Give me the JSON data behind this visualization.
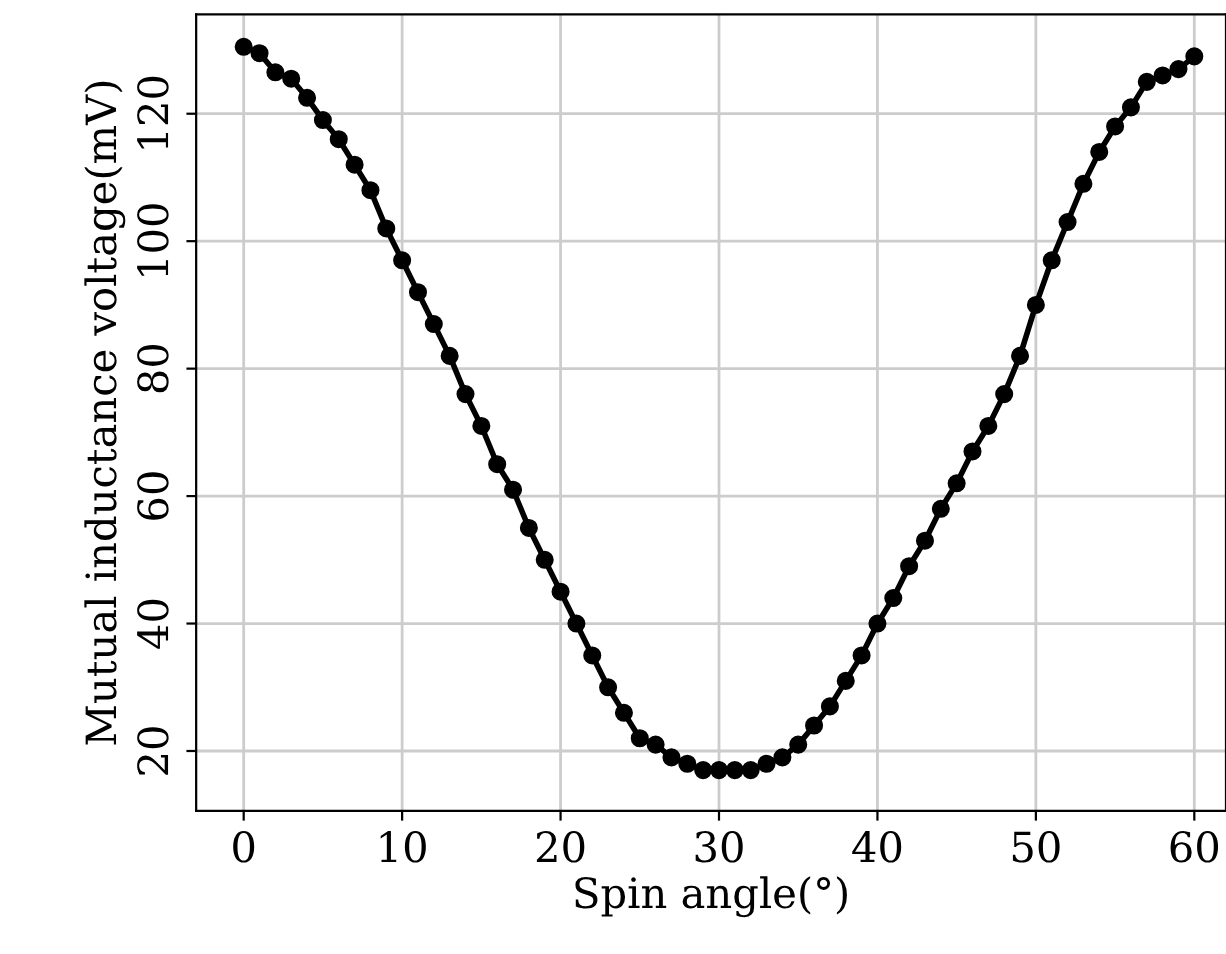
{
  "chart_data": {
    "type": "line",
    "xlabel": "Spin angle(°)",
    "ylabel": "Mutual inductance voltage(mV)",
    "x": [
      0,
      1,
      2,
      3,
      4,
      5,
      6,
      7,
      8,
      9,
      10,
      11,
      12,
      13,
      14,
      15,
      16,
      17,
      18,
      19,
      20,
      21,
      22,
      23,
      24,
      25,
      26,
      27,
      28,
      29,
      30,
      31,
      32,
      33,
      34,
      35,
      36,
      37,
      38,
      39,
      40,
      41,
      42,
      43,
      44,
      45,
      46,
      47,
      48,
      49,
      50,
      51,
      52,
      53,
      54,
      55,
      56,
      57,
      58,
      59,
      60
    ],
    "series": [
      {
        "color": "#000000",
        "values": [
          130.5,
          129.5,
          126.5,
          125.5,
          122.5,
          119,
          116,
          112,
          108,
          102,
          97,
          92,
          87,
          82,
          76,
          71,
          65,
          61,
          55,
          50,
          45,
          40,
          35,
          30,
          26,
          22,
          21,
          19,
          18,
          17,
          17,
          17,
          17,
          18,
          19,
          21,
          24,
          27,
          31,
          35,
          40,
          44,
          49,
          53,
          58,
          62,
          67,
          71,
          76,
          82,
          90,
          97,
          103,
          109,
          114,
          118,
          121,
          125,
          126,
          127,
          129
        ]
      }
    ],
    "xlim": [
      -3,
      62
    ],
    "ylim": [
      10.6,
      135.6
    ],
    "xticks": [
      0,
      10,
      20,
      30,
      40,
      50,
      60
    ],
    "yticks": [
      20,
      40,
      60,
      80,
      100,
      120
    ],
    "grid": true,
    "marker": "circle",
    "line_style": "solid"
  }
}
